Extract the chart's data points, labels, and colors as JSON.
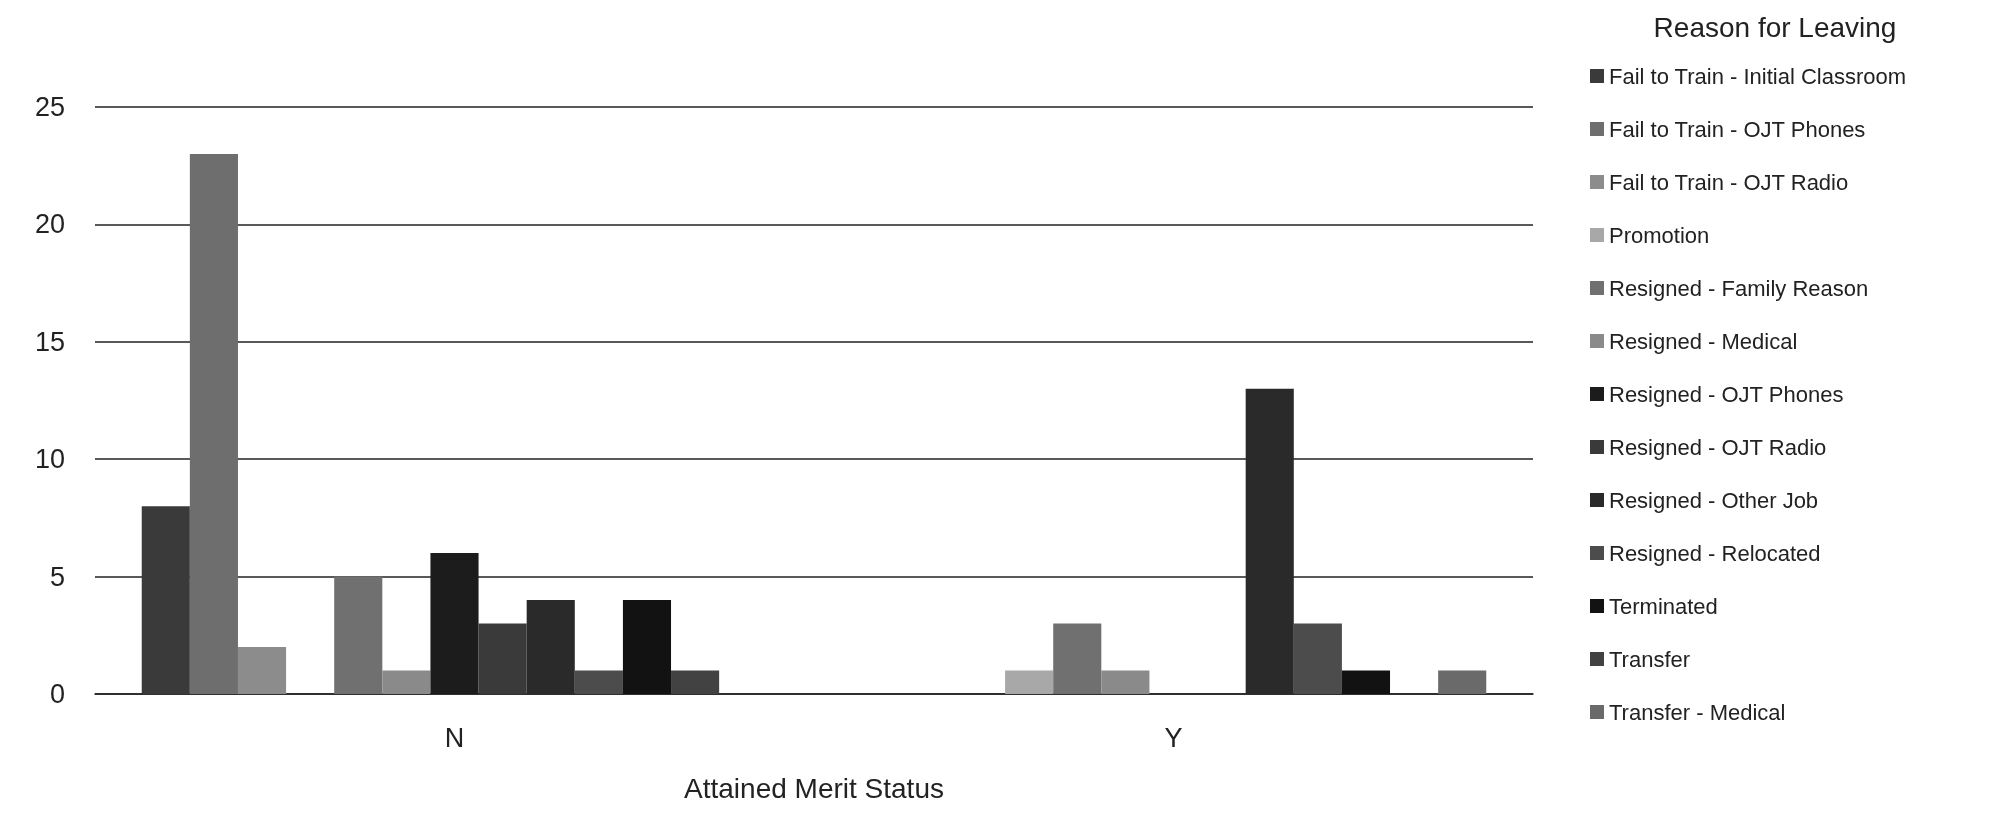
{
  "chart_data": {
    "type": "bar",
    "xlabel": "Attained Merit Status",
    "legend_title": "Reason for Leaving",
    "categories": [
      "N",
      "Y"
    ],
    "ylim": [
      0,
      25
    ],
    "yticks": [
      0,
      5,
      10,
      15,
      20,
      25
    ],
    "grid": "y",
    "legend": "right",
    "series": [
      {
        "name": "Fail to Train - Initial Classroom",
        "color": "#3a3a3a",
        "values": [
          8,
          0
        ]
      },
      {
        "name": "Fail to Train - OJT Phones",
        "color": "#6e6e6e",
        "values": [
          23,
          0
        ]
      },
      {
        "name": "Fail to Train - OJT Radio",
        "color": "#8c8c8c",
        "values": [
          2,
          0
        ]
      },
      {
        "name": "Promotion",
        "color": "#a8a8a8",
        "values": [
          0,
          1
        ]
      },
      {
        "name": "Resigned - Family Reason",
        "color": "#707070",
        "values": [
          5,
          3
        ]
      },
      {
        "name": "Resigned - Medical",
        "color": "#8a8a8a",
        "values": [
          1,
          1
        ]
      },
      {
        "name": "Resigned - OJT Phones",
        "color": "#1c1c1c",
        "values": [
          6,
          0
        ]
      },
      {
        "name": "Resigned - OJT Radio",
        "color": "#3a3a3a",
        "values": [
          3,
          0
        ]
      },
      {
        "name": "Resigned - Other Job",
        "color": "#2a2a2a",
        "values": [
          4,
          13
        ]
      },
      {
        "name": "Resigned - Relocated",
        "color": "#4c4c4c",
        "values": [
          1,
          3
        ]
      },
      {
        "name": "Terminated",
        "color": "#121212",
        "values": [
          4,
          1
        ]
      },
      {
        "name": "Transfer",
        "color": "#424242",
        "values": [
          1,
          0
        ]
      },
      {
        "name": "Transfer - Medical",
        "color": "#6a6a6a",
        "values": [
          0,
          1
        ]
      }
    ]
  }
}
